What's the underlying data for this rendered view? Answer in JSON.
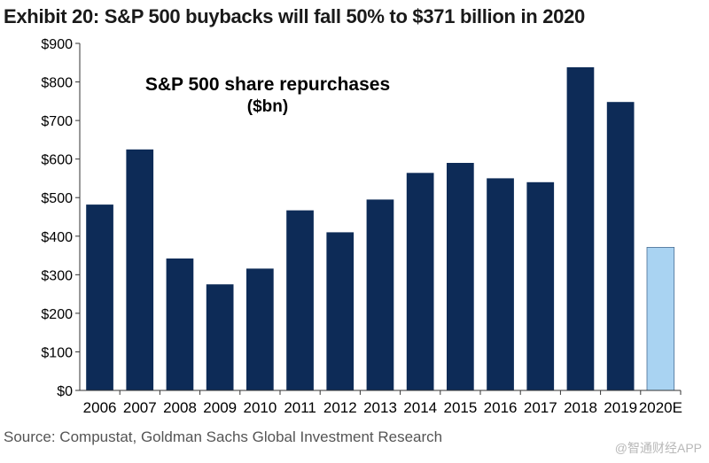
{
  "header": {
    "title": "Exhibit 20: S&P 500 buybacks will fall 50% to $371 billion in 2020"
  },
  "chart_data": {
    "type": "bar",
    "title": "S&P 500 share repurchases",
    "subtitle": "($bn)",
    "xlabel": "",
    "ylabel": "",
    "categories": [
      "2006",
      "2007",
      "2008",
      "2009",
      "2010",
      "2011",
      "2012",
      "2013",
      "2014",
      "2015",
      "2016",
      "2017",
      "2018",
      "2019",
      "2020E"
    ],
    "values": [
      482,
      625,
      342,
      275,
      316,
      467,
      410,
      495,
      564,
      590,
      550,
      540,
      838,
      748,
      371
    ],
    "estimate_flags": [
      false,
      false,
      false,
      false,
      false,
      false,
      false,
      false,
      false,
      false,
      false,
      false,
      false,
      false,
      true
    ],
    "ylim": [
      0,
      900
    ],
    "yticks": [
      0,
      100,
      200,
      300,
      400,
      500,
      600,
      700,
      800,
      900
    ],
    "ytick_labels": [
      "$0",
      "$100",
      "$200",
      "$300",
      "$400",
      "$500",
      "$600",
      "$700",
      "$800",
      "$900"
    ],
    "colors": {
      "actual": "#0d2b57",
      "estimate": "#a9d3f2",
      "estimate_edge": "#4a6f93",
      "axis": "#333333",
      "grid": "#d9d9d9"
    },
    "grid": false,
    "legend": "none"
  },
  "footer": {
    "source": "Source: Compustat, Goldman Sachs Global Investment Research",
    "watermark": "@智通财经APP"
  }
}
